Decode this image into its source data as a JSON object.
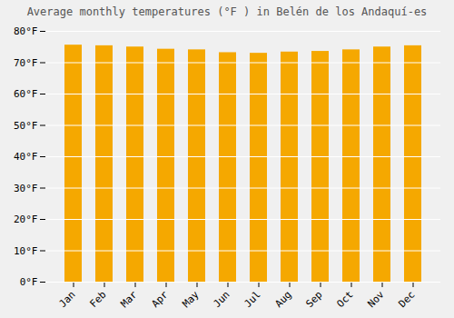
{
  "chart_data": {
    "type": "bar",
    "title": "Average monthly temperatures (°F ) in Belén de los Andaquí-es",
    "categories": [
      "Jan",
      "Feb",
      "Mar",
      "Apr",
      "May",
      "Jun",
      "Jul",
      "Aug",
      "Sep",
      "Oct",
      "Nov",
      "Dec"
    ],
    "values": [
      75.6,
      75.4,
      75.0,
      74.3,
      74.1,
      73.2,
      73.0,
      73.4,
      73.6,
      74.1,
      75.0,
      75.4
    ],
    "color": "#F5A800",
    "ylim": [
      0,
      80
    ],
    "yticks": [
      {
        "value": 0,
        "label": "0°F"
      },
      {
        "value": 10,
        "label": "10°F"
      },
      {
        "value": 20,
        "label": "20°F"
      },
      {
        "value": 30,
        "label": "30°F"
      },
      {
        "value": 40,
        "label": "40°F"
      },
      {
        "value": 50,
        "label": "50°F"
      },
      {
        "value": 60,
        "label": "60°F"
      },
      {
        "value": 70,
        "label": "70°F"
      },
      {
        "value": 80,
        "label": "80°F"
      }
    ],
    "grid": true
  }
}
